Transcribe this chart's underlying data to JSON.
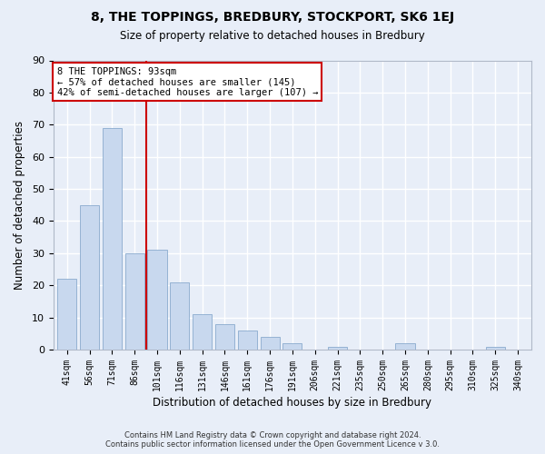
{
  "title": "8, THE TOPPINGS, BREDBURY, STOCKPORT, SK6 1EJ",
  "subtitle": "Size of property relative to detached houses in Bredbury",
  "xlabel": "Distribution of detached houses by size in Bredbury",
  "ylabel": "Number of detached properties",
  "footnote1": "Contains HM Land Registry data © Crown copyright and database right 2024.",
  "footnote2": "Contains public sector information licensed under the Open Government Licence v 3.0.",
  "bar_labels": [
    "41sqm",
    "56sqm",
    "71sqm",
    "86sqm",
    "101sqm",
    "116sqm",
    "131sqm",
    "146sqm",
    "161sqm",
    "176sqm",
    "191sqm",
    "206sqm",
    "221sqm",
    "235sqm",
    "250sqm",
    "265sqm",
    "280sqm",
    "295sqm",
    "310sqm",
    "325sqm",
    "340sqm"
  ],
  "bar_values": [
    22,
    45,
    69,
    30,
    31,
    21,
    11,
    8,
    6,
    4,
    2,
    0,
    1,
    0,
    0,
    2,
    0,
    0,
    0,
    1,
    0
  ],
  "bar_color": "#c8d8ee",
  "bar_edge_color": "#8aabce",
  "ref_line_color": "#cc0000",
  "ylim": [
    0,
    90
  ],
  "yticks": [
    0,
    10,
    20,
    30,
    40,
    50,
    60,
    70,
    80,
    90
  ],
  "annotation_title": "8 THE TOPPINGS: 93sqm",
  "annotation_line1": "← 57% of detached houses are smaller (145)",
  "annotation_line2": "42% of semi-detached houses are larger (107) →",
  "annotation_box_color": "#ffffff",
  "annotation_box_edge": "#cc0000",
  "bg_color": "#e8eef8",
  "grid_color": "#ffffff",
  "spine_color": "#b0b8c8"
}
